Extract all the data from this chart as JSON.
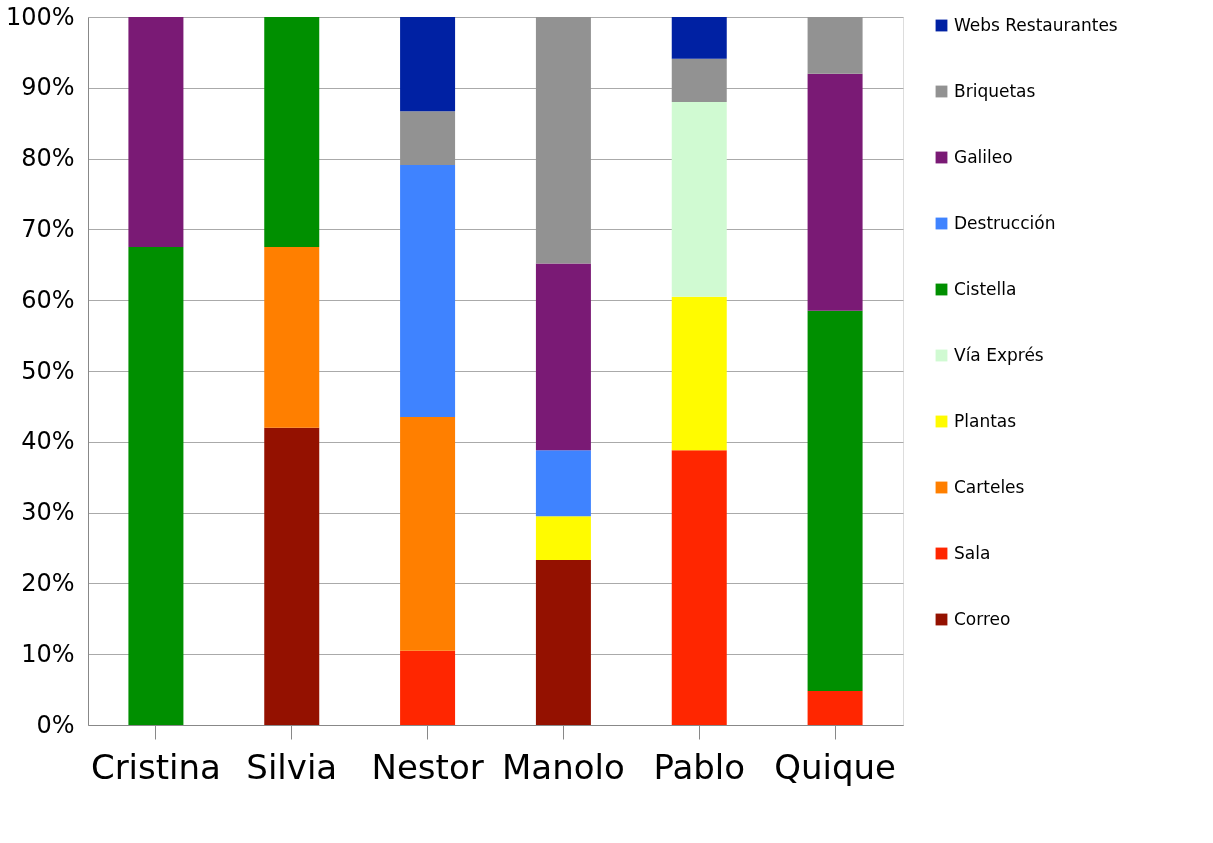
{
  "chart_data": {
    "type": "bar",
    "stacked": true,
    "categories": [
      "Cristina",
      "Silvia",
      "Nestor",
      "Manolo",
      "Pablo",
      "Quique"
    ],
    "ylim": [
      0,
      100
    ],
    "yticks": [
      {
        "value": 0,
        "label": "0%"
      },
      {
        "value": 10,
        "label": "10%"
      },
      {
        "value": 20,
        "label": "20%"
      },
      {
        "value": 30,
        "label": "30%"
      },
      {
        "value": 40,
        "label": "40%"
      },
      {
        "value": 50,
        "label": "50%"
      },
      {
        "value": 60,
        "label": "60%"
      },
      {
        "value": 70,
        "label": "70%"
      },
      {
        "value": 80,
        "label": "80%"
      },
      {
        "value": 90,
        "label": "90%"
      },
      {
        "value": 100,
        "label": "100%"
      }
    ],
    "grid": "y",
    "legend": "right",
    "series": [
      {
        "name": "Correo",
        "color": "#941100",
        "values": [
          null,
          42,
          null,
          23.3,
          null,
          null
        ]
      },
      {
        "name": "Sala",
        "color": "#ff2600",
        "values": [
          null,
          null,
          10.5,
          null,
          38.8,
          4.8
        ]
      },
      {
        "name": "Carteles",
        "color": "#ff7f00",
        "values": [
          null,
          25.5,
          33,
          null,
          null,
          null
        ]
      },
      {
        "name": "Plantas",
        "color": "#fffb00",
        "values": [
          null,
          null,
          null,
          6.2,
          21.7,
          null
        ]
      },
      {
        "name": "Vía Exprés",
        "color": "#d0fad2",
        "values": [
          null,
          null,
          null,
          null,
          27.5,
          null
        ]
      },
      {
        "name": "Cistella",
        "color": "#008f00",
        "values": [
          67.5,
          32.5,
          null,
          null,
          null,
          53.7
        ]
      },
      {
        "name": "Destrucción",
        "color": "#3f83ff",
        "values": [
          null,
          null,
          35.6,
          9.3,
          null,
          null
        ]
      },
      {
        "name": "Galileo",
        "color": "#7a1a75",
        "values": [
          32.5,
          null,
          null,
          26.4,
          null,
          33.5
        ]
      },
      {
        "name": "Briquetas",
        "color": "#929292",
        "values": [
          null,
          null,
          7.6,
          34.8,
          6.1,
          8
        ]
      },
      {
        "name": "Webs Restaurantes",
        "color": "#0021a3",
        "values": [
          null,
          null,
          13.3,
          null,
          5.9,
          null
        ]
      }
    ]
  }
}
